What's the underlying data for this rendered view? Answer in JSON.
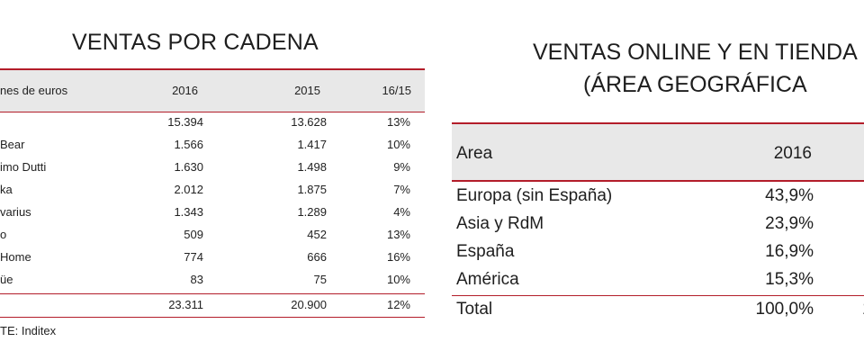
{
  "left_table": {
    "title": "VENTAS POR CADENA",
    "header": {
      "col_name": "nes de euros",
      "col_2016": "2016",
      "col_2015": "2015",
      "col_pct": "16/15"
    },
    "rows": [
      {
        "name": "",
        "v2016": "15.394",
        "v2015": "13.628",
        "pct": "13%"
      },
      {
        "name": "Bear",
        "v2016": "1.566",
        "v2015": "1.417",
        "pct": "10%"
      },
      {
        "name": "imo Dutti",
        "v2016": "1.630",
        "v2015": "1.498",
        "pct": "9%"
      },
      {
        "name": "ka",
        "v2016": "2.012",
        "v2015": "1.875",
        "pct": "7%"
      },
      {
        "name": "varius",
        "v2016": "1.343",
        "v2015": "1.289",
        "pct": "4%"
      },
      {
        "name": "o",
        "v2016": "509",
        "v2015": "452",
        "pct": "13%"
      },
      {
        "name": "Home",
        "v2016": "774",
        "v2015": "666",
        "pct": "16%"
      },
      {
        "name": "üe",
        "v2016": "83",
        "v2015": "75",
        "pct": "10%"
      }
    ],
    "total": {
      "name": "",
      "v2016": "23.311",
      "v2015": "20.900",
      "pct": "12%"
    },
    "source": "TE: Inditex"
  },
  "right_table": {
    "title_line1": "VENTAS ONLINE Y EN TIENDA",
    "title_line2": "(ÁREA GEOGRÁFICA",
    "header": {
      "col_area": "Area",
      "col_2016": "2016"
    },
    "rows": [
      {
        "name": "Europa (sin España)",
        "v2016": "43,9%"
      },
      {
        "name": "Asia y RdM",
        "v2016": "23,9%"
      },
      {
        "name": "España",
        "v2016": "16,9%"
      },
      {
        "name": "América",
        "v2016": "15,3%"
      }
    ],
    "total": {
      "name": "Total",
      "v2016": "100,0%",
      "clipped": "1"
    }
  }
}
